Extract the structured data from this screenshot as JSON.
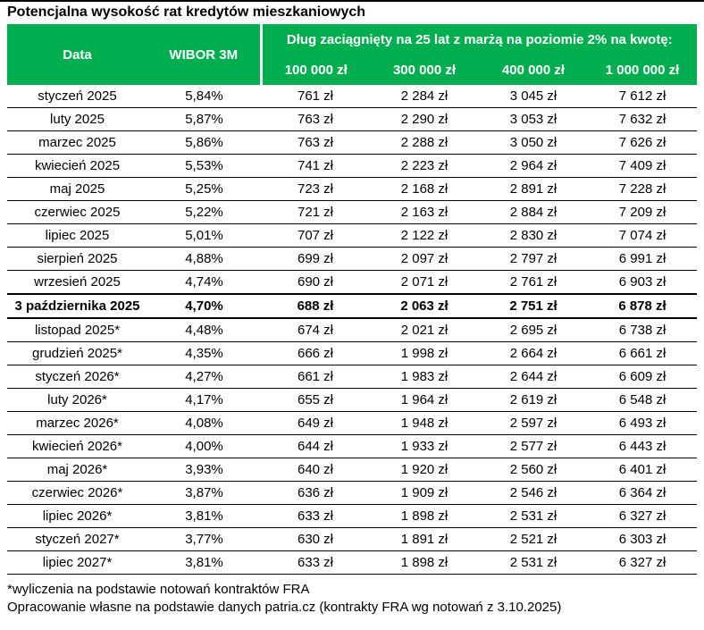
{
  "title": "Potencjalna wysokość rat kredytów mieszkaniowych",
  "colors": {
    "header_green": "#00AE50",
    "header_text": "#FFFFFF",
    "body_text": "#000000",
    "rule_black": "#000000"
  },
  "chart_data": {
    "type": "table",
    "title": "Potencjalna wysokość rat kredytów mieszkaniowych",
    "group_header": "Dług zaciągnięty na 25 lat z marżą na poziomie 2% na kwotę:",
    "columns": [
      "Data",
      "WIBOR 3M",
      "100 000 zł",
      "300 000 zł",
      "400 000 zł",
      "1 000 000 zł"
    ],
    "highlight_index": 9,
    "rows": [
      [
        "styczeń 2025",
        "5,84%",
        "761 zł",
        "2 284 zł",
        "3 045 zł",
        "7 612 zł"
      ],
      [
        "luty 2025",
        "5,87%",
        "763 zł",
        "2 290 zł",
        "3 053 zł",
        "7 632 zł"
      ],
      [
        "marzec 2025",
        "5,86%",
        "763 zł",
        "2 288 zł",
        "3 050 zł",
        "7 626 zł"
      ],
      [
        "kwiecień 2025",
        "5,53%",
        "741 zł",
        "2 223 zł",
        "2 964 zł",
        "7 409 zł"
      ],
      [
        "maj 2025",
        "5,25%",
        "723 zł",
        "2 168 zł",
        "2 891 zł",
        "7 228 zł"
      ],
      [
        "czerwiec 2025",
        "5,22%",
        "721 zł",
        "2 163 zł",
        "2 884 zł",
        "7 209 zł"
      ],
      [
        "lipiec 2025",
        "5,01%",
        "707 zł",
        "2 122 zł",
        "2 830 zł",
        "7 074 zł"
      ],
      [
        "sierpień 2025",
        "4,88%",
        "699 zł",
        "2 097 zł",
        "2 797 zł",
        "6 991 zł"
      ],
      [
        "wrzesień 2025",
        "4,74%",
        "690 zł",
        "2 071 zł",
        "2 761 zł",
        "6 903 zł"
      ],
      [
        "3 października 2025",
        "4,70%",
        "688 zł",
        "2 063 zł",
        "2 751 zł",
        "6 878 zł"
      ],
      [
        "listopad 2025*",
        "4,48%",
        "674 zł",
        "2 021 zł",
        "2 695 zł",
        "6 738 zł"
      ],
      [
        "grudzień 2025*",
        "4,35%",
        "666 zł",
        "1 998 zł",
        "2 664 zł",
        "6 661 zł"
      ],
      [
        "styczeń 2026*",
        "4,27%",
        "661 zł",
        "1 983 zł",
        "2 644 zł",
        "6 609 zł"
      ],
      [
        "luty 2026*",
        "4,17%",
        "655 zł",
        "1 964 zł",
        "2 619 zł",
        "6 548 zł"
      ],
      [
        "marzec 2026*",
        "4,08%",
        "649 zł",
        "1 948 zł",
        "2 597 zł",
        "6 493 zł"
      ],
      [
        "kwiecień 2026*",
        "4,00%",
        "644 zł",
        "1 933 zł",
        "2 577 zł",
        "6 443 zł"
      ],
      [
        "maj 2026*",
        "3,93%",
        "640 zł",
        "1 920 zł",
        "2 560 zł",
        "6 401 zł"
      ],
      [
        "czerwiec 2026*",
        "3,87%",
        "636 zł",
        "1 909 zł",
        "2 546 zł",
        "6 364 zł"
      ],
      [
        "lipiec 2026*",
        "3,81%",
        "633 zł",
        "1 898 zł",
        "2 531 zł",
        "6 327 zł"
      ],
      [
        "styczeń 2027*",
        "3,77%",
        "630 zł",
        "1 891 zł",
        "2 521 zł",
        "6 303 zł"
      ],
      [
        "lipiec 2027*",
        "3,81%",
        "633 zł",
        "1 898 zł",
        "2 531 zł",
        "6 327 zł"
      ]
    ],
    "footnotes": [
      "*wyliczenia na podstawie notowań kontraktów FRA",
      "Opracowanie własne na podstawie danych patria.cz (kontrakty FRA wg notowań z 3.10.2025)"
    ]
  }
}
